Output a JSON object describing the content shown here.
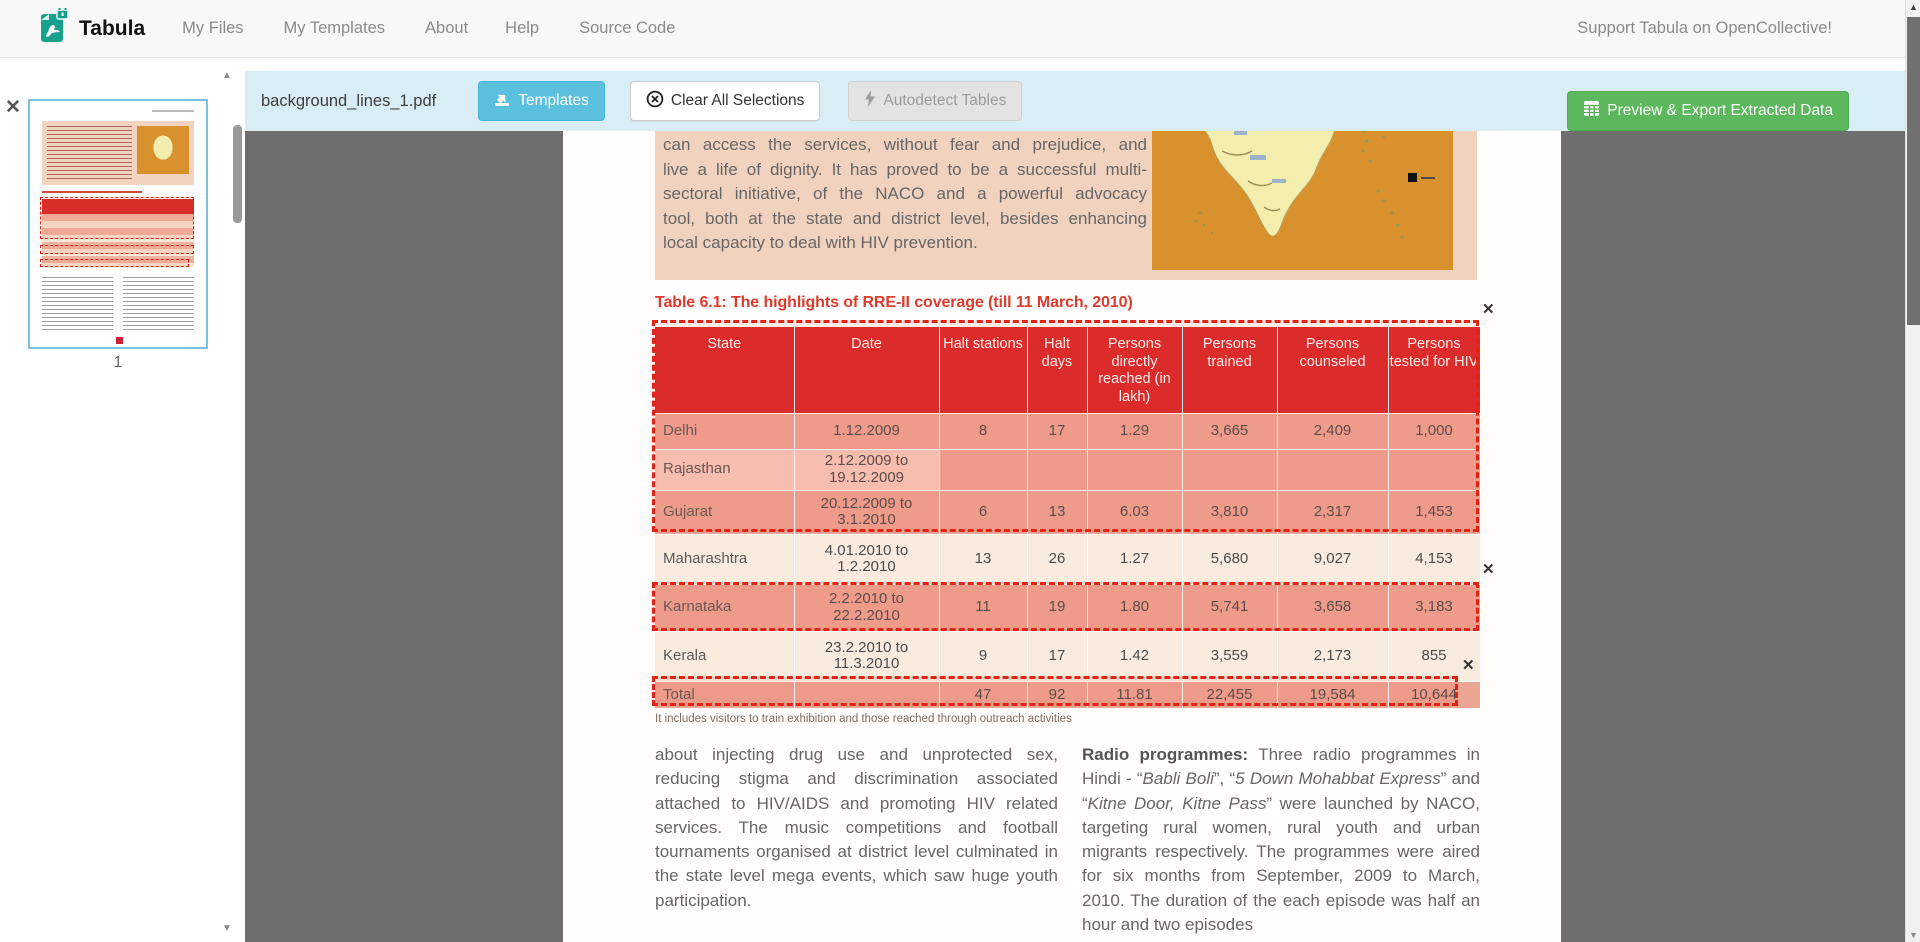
{
  "navbar": {
    "brand": "Tabula",
    "items": [
      "My Files",
      "My Templates",
      "About",
      "Help",
      "Source Code"
    ],
    "support": "Support Tabula on OpenCollective!"
  },
  "toolbar": {
    "filename": "background_lines_1.pdf",
    "templates_label": "Templates",
    "clear_label": "Clear All Selections",
    "autodetect_label": "Autodetect Tables",
    "export_label": "Preview & Export Extracted Data"
  },
  "sidebar": {
    "page_label": "1",
    "remove_glyph": "✕"
  },
  "page": {
    "intro_lines": [
      "can access the services, without fear and prejudice, and",
      "live a life of dignity. It has proved to be a successful multi-",
      "sectoral initiative, of the NACO and a powerful advocacy",
      "tool, both at the state and district level, besides enhancing",
      "local capacity to deal with HIV prevention."
    ],
    "table_title": "Table 6.1: The highlights of RRE-II coverage (till 11 March, 2010)",
    "table": {
      "headers": [
        "State",
        "Date",
        "Halt stations",
        "Halt days",
        "Persons directly reached (in lakh)",
        "Persons trained",
        "Persons counseled",
        "Persons tested for HIV"
      ],
      "rows": [
        [
          "Delhi",
          "1.12.2009",
          "8",
          "17",
          "1.29",
          "3,665",
          "2,409",
          "1,000"
        ],
        [
          "Rajasthan",
          "2.12.2009 to 19.12.2009",
          "",
          "",
          "",
          "",
          "",
          ""
        ],
        [
          "Gujarat",
          "20.12.2009 to 3.1.2010",
          "6",
          "13",
          "6.03",
          "3,810",
          "2,317",
          "1,453"
        ],
        [
          "Maharashtra",
          "4.01.2010 to 1.2.2010",
          "13",
          "26",
          "1.27",
          "5,680",
          "9,027",
          "4,153"
        ],
        [
          "Karnataka",
          "2.2.2010 to 22.2.2010",
          "11",
          "19",
          "1.80",
          "5,741",
          "3,658",
          "3,183"
        ],
        [
          "Kerala",
          "23.2.2010 to 11.3.2010",
          "9",
          "17",
          "1.42",
          "3,559",
          "2,173",
          "855"
        ],
        [
          "Total",
          "",
          "47",
          "92",
          "11.81",
          "22,455",
          "19,584",
          "10,644"
        ]
      ]
    },
    "footnote": "It includes visitors to train exhibition and those reached through outreach activities",
    "left_paragraph": "about injecting drug use and unprotected sex, reducing stigma and discrimination associated attached to HIV/AIDS and promoting HIV related services. The music competitions and football tournaments organised at district level culminated in the state level mega events, which saw huge youth participation.",
    "right_paragraph": [
      {
        "t": "Radio programmes:",
        "b": true
      },
      {
        "t": " Three radio programmes in Hindi - “"
      },
      {
        "t": "Babli Boli",
        "i": true
      },
      {
        "t": "”, “"
      },
      {
        "t": "5 Down Mohabbat Express",
        "i": true
      },
      {
        "t": "” and “"
      },
      {
        "t": "Kitne Door, Kitne Pass",
        "i": true
      },
      {
        "t": "” were launched by NACO, targeting rural women, rural youth and urban migrants respectively. The programmes were aired for six months from September, 2009 to March, 2010. The duration of the each episode was half an hour and two episodes"
      }
    ],
    "selection_close_glyph": "✕"
  },
  "colors": {
    "toolbar_bg": "#d9edf7",
    "templates_btn": "#5bc0de",
    "export_btn": "#5cb85c",
    "table_header_red": "#d7282a",
    "selection_red": "#df2415",
    "title_red": "#df3a2e",
    "brand_teal": "#17a08c"
  }
}
